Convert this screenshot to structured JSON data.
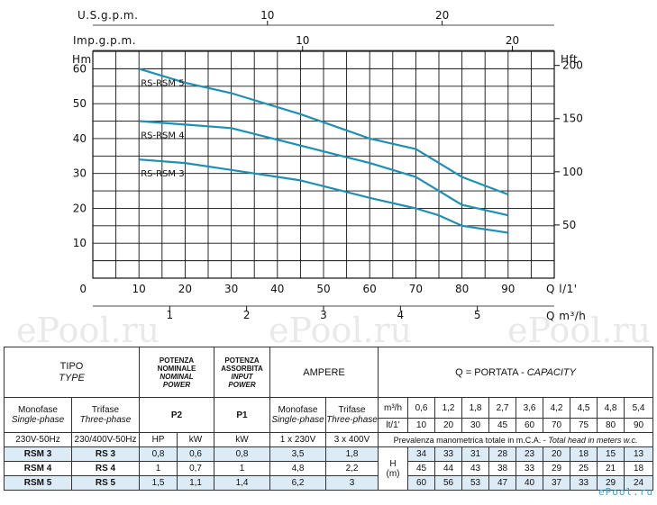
{
  "chart_data": {
    "type": "line",
    "x_unit_label": "Q l/1'",
    "x_range": [
      0,
      100
    ],
    "x_ticks": [
      0,
      10,
      20,
      30,
      40,
      50,
      60,
      70,
      80,
      90
    ],
    "x2_label": "Q m³/h",
    "x2_ticks": [
      "1",
      "2",
      "3",
      "4",
      "5"
    ],
    "x2_tick_values": [
      1,
      2,
      3,
      4,
      5
    ],
    "usgpm_label": "U.S.g.p.m.",
    "usgpm_ticks": [
      "10",
      "20"
    ],
    "usgpm_tick_values": [
      10,
      20
    ],
    "impgpm_label": "Imp.g.p.m.",
    "impgpm_ticks": [
      "10",
      "20"
    ],
    "impgpm_tick_values": [
      10,
      20
    ],
    "y_label": "Hm",
    "y_range": [
      0,
      65
    ],
    "y_ticks": [
      10,
      20,
      30,
      40,
      50,
      60
    ],
    "y2_label": "Hft",
    "y2_ticks": [
      50,
      100,
      150,
      200
    ],
    "series": [
      {
        "name": "RS-RSM 5",
        "x": [
          10,
          20,
          30,
          45,
          60,
          70,
          75,
          80,
          90
        ],
        "y": [
          60,
          56,
          53,
          47,
          40,
          37,
          33,
          29,
          24
        ]
      },
      {
        "name": "RS-RSM 4",
        "x": [
          10,
          20,
          30,
          45,
          60,
          70,
          75,
          80,
          90
        ],
        "y": [
          45,
          44,
          43,
          38,
          33,
          29,
          25,
          21,
          18
        ]
      },
      {
        "name": "RS-RSM 3",
        "x": [
          10,
          20,
          30,
          45,
          60,
          70,
          75,
          80,
          90
        ],
        "y": [
          34,
          33,
          31,
          28,
          23,
          20,
          18,
          15,
          13
        ]
      }
    ],
    "line_color": "#1f8fb3",
    "grid": true
  },
  "watermark": "ePool.ru",
  "brand": "ePool.ru",
  "table": {
    "tipo": "TIPO",
    "type": "TYPE",
    "pot_nom_1": "POTENZA NOMINALE",
    "pot_nom_2": "NOMINAL",
    "pot_nom_3": "POWER",
    "pot_ass_1": "POTENZA",
    "pot_ass_2": "ASSORBITA",
    "pot_ass_3": "INPUT",
    "pot_ass_4": "POWER",
    "ampere": "AMPERE",
    "q_head": "Q = PORTATA - ",
    "q_head_it": "CAPACITY",
    "monofase": "Monofase",
    "single_phase": "Single-phase",
    "trifase": "Trifase",
    "three_phase": "Three-phase",
    "p2": "P2",
    "p1": "P1",
    "m3h": "m³/h",
    "lt": "lt/1'",
    "q_m3h": [
      "0,6",
      "1,2",
      "1,8",
      "2,7",
      "3,6",
      "4,2",
      "4,5",
      "4,8",
      "5,4"
    ],
    "q_lt": [
      "10",
      "20",
      "30",
      "45",
      "60",
      "70",
      "75",
      "80",
      "90"
    ],
    "volt_mono": "230V-50Hz",
    "volt_tri": "230/400V-50Hz",
    "hp": "HP",
    "kw": "kW",
    "kw2": "kW",
    "amp_mono": "1 x 230V",
    "amp_tri": "3 x 400V",
    "prevalenza": "Prevalenza manometrica totale in m.C.A. - ",
    "prevalenza_it": "Total head in meters w.c.",
    "h": "H",
    "h_unit": "(m)",
    "rows": [
      {
        "mono": "RSM 3",
        "tri": "RS 3",
        "hp": "0,8",
        "kw": "0,6",
        "p1": "0,8",
        "a1": "3,5",
        "a3": "1,8",
        "h": [
          "34",
          "33",
          "31",
          "28",
          "23",
          "20",
          "18",
          "15",
          "13"
        ]
      },
      {
        "mono": "RSM 4",
        "tri": "RS 4",
        "hp": "1",
        "kw": "0,7",
        "p1": "1",
        "a1": "4,8",
        "a3": "2,2",
        "h": [
          "45",
          "44",
          "43",
          "38",
          "33",
          "29",
          "25",
          "21",
          "18"
        ]
      },
      {
        "mono": "RSM 5",
        "tri": "RS 5",
        "hp": "1,5",
        "kw": "1,1",
        "p1": "1,4",
        "a1": "6,2",
        "a3": "3",
        "h": [
          "60",
          "56",
          "53",
          "47",
          "40",
          "37",
          "33",
          "29",
          "24"
        ]
      }
    ]
  }
}
